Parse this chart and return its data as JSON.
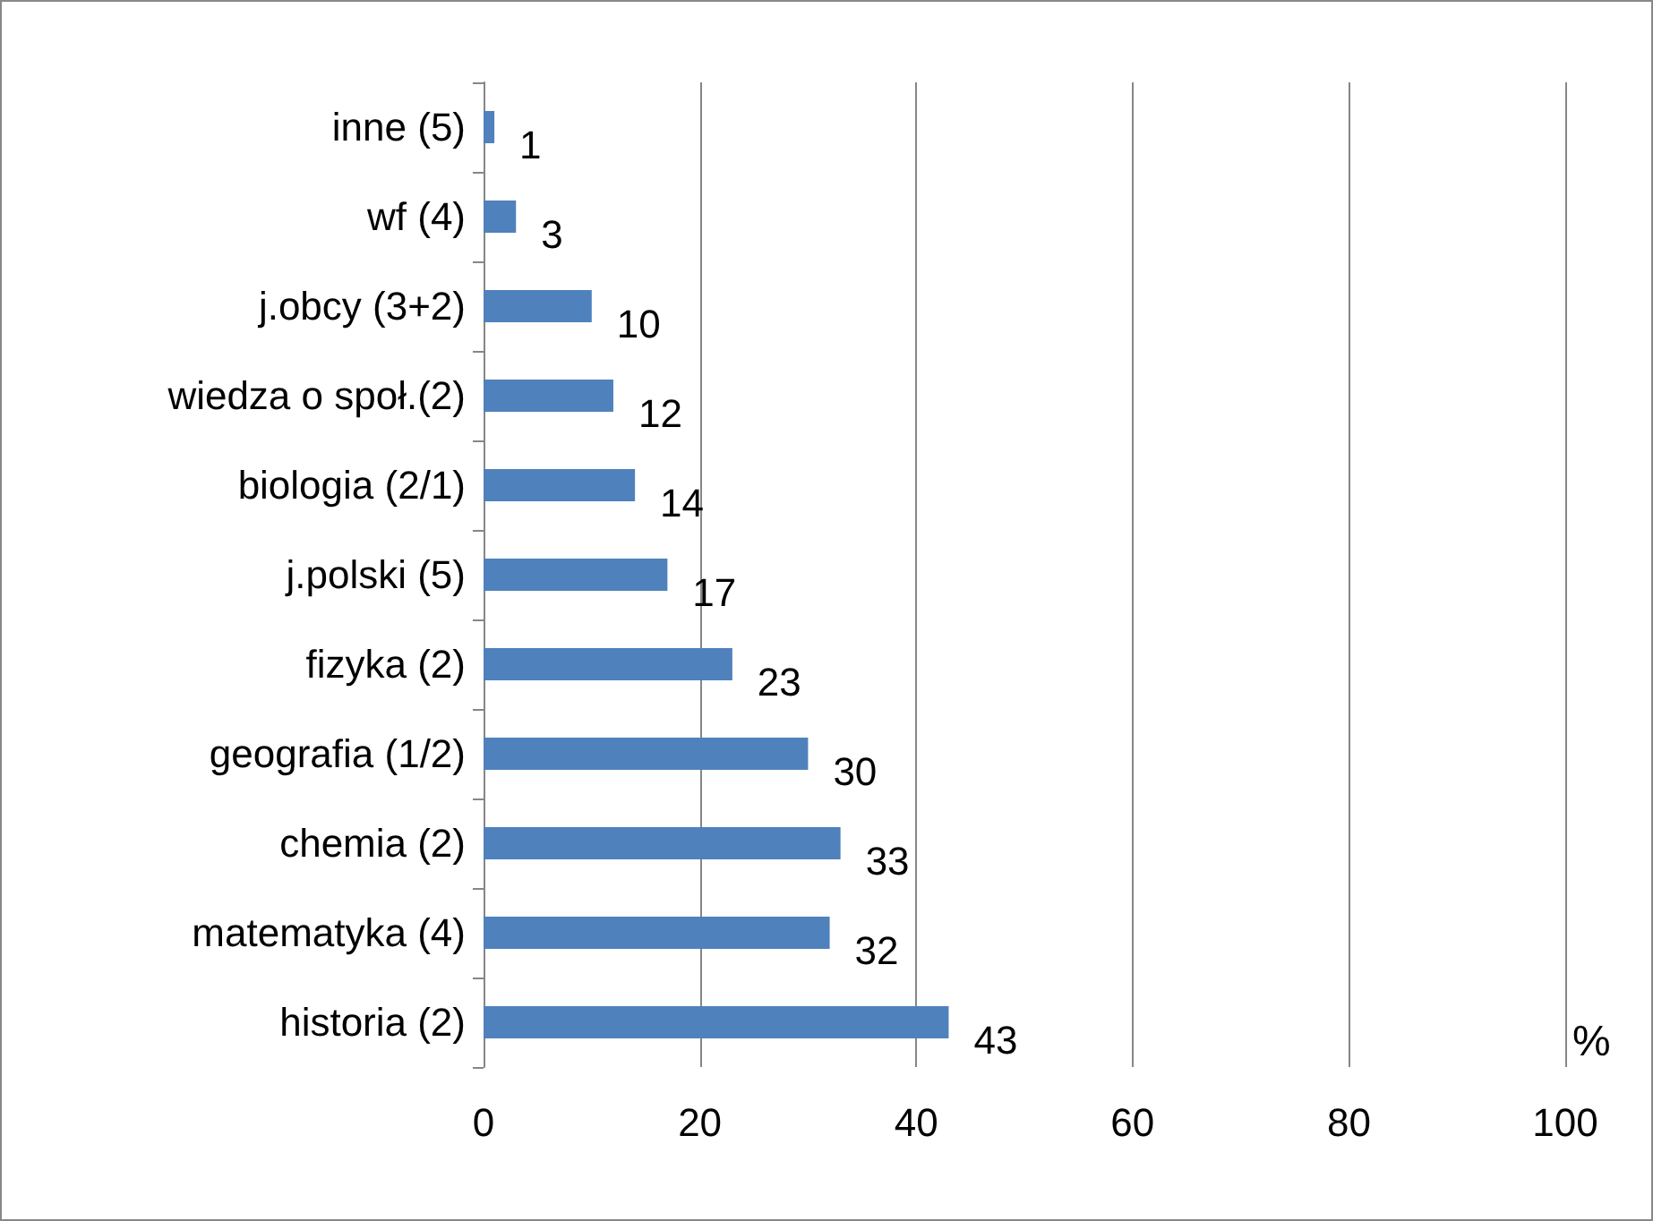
{
  "chart_data": {
    "type": "bar",
    "orientation": "horizontal",
    "xlabel": "%",
    "categories": [
      "inne (5)",
      "wf (4)",
      "j.obcy (3+2)",
      "wiedza o społ.(2)",
      "biologia (2/1)",
      "j.polski (5)",
      "fizyka (2)",
      "geografia (1/2)",
      "chemia (2)",
      "matematyka (4)",
      "historia (2)"
    ],
    "values": [
      1,
      3,
      10,
      12,
      14,
      17,
      23,
      30,
      33,
      32,
      43
    ],
    "color": "#4f81bd",
    "xlim": [
      0,
      100
    ],
    "xticks": [
      0,
      20,
      40,
      60,
      80,
      100
    ],
    "grid": "x",
    "data_labels": true
  }
}
